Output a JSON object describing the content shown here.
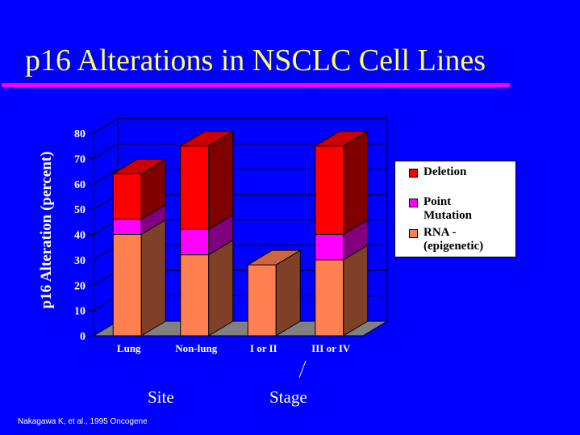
{
  "slide": {
    "title": "p16 Alterations in NSCLC Cell Lines",
    "citation": "Nakagawa K, et al., 1995  Oncogene",
    "group_labels": [
      "Site",
      "Stage"
    ]
  },
  "colors": {
    "background": "#0000FF",
    "title": "#FFFF66",
    "title_rule": "#FF00FF",
    "deletion": "#FF0000",
    "point_mutation": "#FF00FF",
    "rna": "#FF7F50",
    "floor": "#808080",
    "wall": "#0000FF"
  },
  "chart_data": {
    "type": "bar",
    "stacked": true,
    "three_d": true,
    "categories": [
      "Lung",
      "Non-lung",
      "I or II",
      "III or IV"
    ],
    "series": [
      {
        "name": "RNA -\n(epigenetic)",
        "values": [
          40,
          32,
          28,
          30
        ],
        "color": "#FF7F50"
      },
      {
        "name": "Point\nMutation",
        "values": [
          6,
          10,
          0,
          10
        ],
        "color": "#FF00FF"
      },
      {
        "name": "Deletion",
        "values": [
          18,
          33,
          0,
          35
        ],
        "color": "#FF0000"
      }
    ],
    "yticks": [
      0,
      10,
      20,
      30,
      40,
      50,
      60,
      70,
      80
    ],
    "ylabel": "p16 Alteration (percent)",
    "xlabel": "",
    "ylim": [
      0,
      80
    ],
    "legend": {
      "position": "right",
      "entries": [
        {
          "label": "Deletion",
          "color": "#FF0000"
        },
        {
          "label": "Point\nMutation",
          "color": "#FF00FF"
        },
        {
          "label": "RNA -\n(epigenetic)",
          "color": "#FF7F50"
        }
      ]
    }
  }
}
